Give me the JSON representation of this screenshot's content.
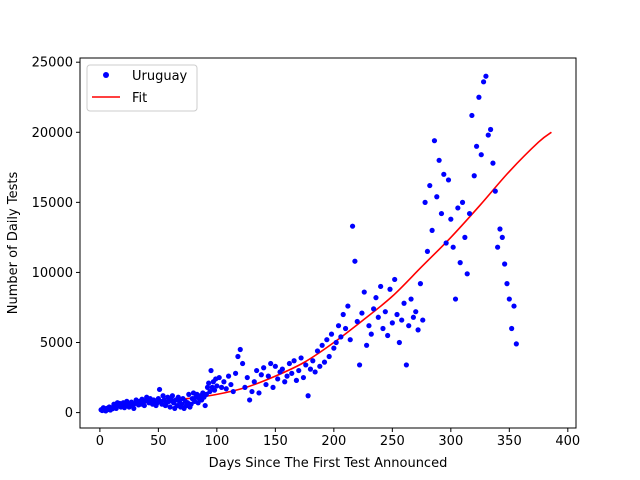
{
  "chart_data": {
    "type": "scatter",
    "title": "",
    "xlabel": "Days Since The First Test Announced",
    "ylabel": "Number of Daily Tests",
    "xlim": [
      -17,
      407
    ],
    "ylim": [
      -1100,
      25300
    ],
    "xticks": [
      0,
      50,
      100,
      150,
      200,
      250,
      300,
      350,
      400
    ],
    "xtick_labels": [
      "0",
      "50",
      "100",
      "150",
      "200",
      "250",
      "300",
      "350",
      "400"
    ],
    "yticks": [
      0,
      5000,
      10000,
      15000,
      20000,
      25000
    ],
    "ytick_labels": [
      "0",
      "5000",
      "10000",
      "15000",
      "20000",
      "25000"
    ],
    "grid": false,
    "legend": {
      "placement": "upper-left",
      "entries": [
        {
          "label": "Uruguay",
          "marker": "dot",
          "color": "#0000ff"
        },
        {
          "label": "Fit",
          "marker": "line",
          "color": "#ff0000"
        }
      ]
    },
    "series": [
      {
        "name": "Uruguay",
        "kind": "scatter",
        "color": "#0000ff",
        "points": [
          [
            1,
            200
          ],
          [
            2,
            150
          ],
          [
            3,
            350
          ],
          [
            4,
            250
          ],
          [
            5,
            120
          ],
          [
            6,
            300
          ],
          [
            7,
            220
          ],
          [
            8,
            400
          ],
          [
            9,
            180
          ],
          [
            10,
            350
          ],
          [
            11,
            280
          ],
          [
            12,
            600
          ],
          [
            13,
            450
          ],
          [
            14,
            300
          ],
          [
            15,
            700
          ],
          [
            16,
            500
          ],
          [
            17,
            650
          ],
          [
            18,
            400
          ],
          [
            19,
            550
          ],
          [
            20,
            700
          ],
          [
            21,
            350
          ],
          [
            22,
            500
          ],
          [
            23,
            800
          ],
          [
            24,
            600
          ],
          [
            25,
            400
          ],
          [
            26,
            550
          ],
          [
            27,
            750
          ],
          [
            28,
            500
          ],
          [
            29,
            300
          ],
          [
            30,
            650
          ],
          [
            31,
            900
          ],
          [
            32,
            700
          ],
          [
            33,
            550
          ],
          [
            34,
            800
          ],
          [
            35,
            600
          ],
          [
            36,
            950
          ],
          [
            37,
            700
          ],
          [
            38,
            500
          ],
          [
            39,
            850
          ],
          [
            40,
            1100
          ],
          [
            41,
            900
          ],
          [
            42,
            700
          ],
          [
            43,
            1000
          ],
          [
            44,
            800
          ],
          [
            45,
            600
          ],
          [
            46,
            900
          ],
          [
            47,
            750
          ],
          [
            48,
            500
          ],
          [
            49,
            700
          ],
          [
            50,
            1000
          ],
          [
            51,
            1650
          ],
          [
            52,
            800
          ],
          [
            53,
            600
          ],
          [
            54,
            1200
          ],
          [
            55,
            900
          ],
          [
            56,
            500
          ],
          [
            57,
            700
          ],
          [
            58,
            1100
          ],
          [
            59,
            800
          ],
          [
            60,
            400
          ],
          [
            61,
            950
          ],
          [
            62,
            1200
          ],
          [
            63,
            700
          ],
          [
            64,
            300
          ],
          [
            65,
            900
          ],
          [
            66,
            500
          ],
          [
            67,
            1100
          ],
          [
            68,
            800
          ],
          [
            69,
            400
          ],
          [
            70,
            600
          ],
          [
            71,
            1000
          ],
          [
            72,
            300
          ],
          [
            73,
            800
          ],
          [
            74,
            500
          ],
          [
            75,
            700
          ],
          [
            76,
            1300
          ],
          [
            77,
            400
          ],
          [
            78,
            600
          ],
          [
            79,
            1000
          ],
          [
            80,
            1400
          ],
          [
            81,
            800
          ],
          [
            82,
            1100
          ],
          [
            83,
            1300
          ],
          [
            84,
            700
          ],
          [
            85,
            1000
          ],
          [
            86,
            1200
          ],
          [
            87,
            900
          ],
          [
            88,
            1400
          ],
          [
            89,
            1100
          ],
          [
            90,
            500
          ],
          [
            91,
            1300
          ],
          [
            92,
            1800
          ],
          [
            93,
            2100
          ],
          [
            94,
            1500
          ],
          [
            95,
            3000
          ],
          [
            96,
            1800
          ],
          [
            97,
            2200
          ],
          [
            98,
            1600
          ],
          [
            99,
            2400
          ],
          [
            100,
            1900
          ],
          [
            102,
            2500
          ],
          [
            104,
            1800
          ],
          [
            106,
            2200
          ],
          [
            108,
            1700
          ],
          [
            110,
            2600
          ],
          [
            112,
            2000
          ],
          [
            114,
            1500
          ],
          [
            116,
            2800
          ],
          [
            118,
            4000
          ],
          [
            120,
            4500
          ],
          [
            122,
            3500
          ],
          [
            124,
            1800
          ],
          [
            126,
            2500
          ],
          [
            128,
            900
          ],
          [
            130,
            1500
          ],
          [
            132,
            2200
          ],
          [
            134,
            3000
          ],
          [
            136,
            1400
          ],
          [
            138,
            2700
          ],
          [
            140,
            3200
          ],
          [
            142,
            2000
          ],
          [
            144,
            2600
          ],
          [
            146,
            3500
          ],
          [
            148,
            1800
          ],
          [
            150,
            3300
          ],
          [
            152,
            2400
          ],
          [
            154,
            2900
          ],
          [
            156,
            3100
          ],
          [
            158,
            2200
          ],
          [
            160,
            2600
          ],
          [
            162,
            3500
          ],
          [
            164,
            2800
          ],
          [
            166,
            3700
          ],
          [
            168,
            2300
          ],
          [
            170,
            3000
          ],
          [
            172,
            3900
          ],
          [
            174,
            2500
          ],
          [
            176,
            3400
          ],
          [
            178,
            1200
          ],
          [
            180,
            3100
          ],
          [
            182,
            3700
          ],
          [
            184,
            2900
          ],
          [
            186,
            4400
          ],
          [
            188,
            3300
          ],
          [
            190,
            4800
          ],
          [
            192,
            3600
          ],
          [
            194,
            5200
          ],
          [
            196,
            4000
          ],
          [
            198,
            5600
          ],
          [
            200,
            4600
          ],
          [
            202,
            5000
          ],
          [
            204,
            6200
          ],
          [
            206,
            5400
          ],
          [
            208,
            7000
          ],
          [
            210,
            6000
          ],
          [
            212,
            7600
          ],
          [
            214,
            5200
          ],
          [
            216,
            13300
          ],
          [
            218,
            10800
          ],
          [
            220,
            6500
          ],
          [
            222,
            3400
          ],
          [
            224,
            7100
          ],
          [
            226,
            8600
          ],
          [
            228,
            4800
          ],
          [
            230,
            6200
          ],
          [
            232,
            5600
          ],
          [
            234,
            7400
          ],
          [
            236,
            8200
          ],
          [
            238,
            6800
          ],
          [
            240,
            9000
          ],
          [
            242,
            6000
          ],
          [
            244,
            7200
          ],
          [
            246,
            5500
          ],
          [
            248,
            8800
          ],
          [
            250,
            6400
          ],
          [
            252,
            9500
          ],
          [
            254,
            7000
          ],
          [
            256,
            5000
          ],
          [
            258,
            6600
          ],
          [
            260,
            7800
          ],
          [
            262,
            3400
          ],
          [
            264,
            6200
          ],
          [
            266,
            8100
          ],
          [
            268,
            6800
          ],
          [
            270,
            7200
          ],
          [
            272,
            5900
          ],
          [
            274,
            9200
          ],
          [
            276,
            6600
          ],
          [
            278,
            15000
          ],
          [
            280,
            11500
          ],
          [
            282,
            16200
          ],
          [
            284,
            13000
          ],
          [
            286,
            19400
          ],
          [
            288,
            15400
          ],
          [
            290,
            18000
          ],
          [
            292,
            14200
          ],
          [
            294,
            17000
          ],
          [
            296,
            12100
          ],
          [
            298,
            16600
          ],
          [
            300,
            13800
          ],
          [
            302,
            11800
          ],
          [
            304,
            8100
          ],
          [
            306,
            14600
          ],
          [
            308,
            10700
          ],
          [
            310,
            15000
          ],
          [
            312,
            12500
          ],
          [
            314,
            9900
          ],
          [
            316,
            14200
          ],
          [
            318,
            21200
          ],
          [
            320,
            16900
          ],
          [
            322,
            19000
          ],
          [
            324,
            22500
          ],
          [
            326,
            18400
          ],
          [
            328,
            23600
          ],
          [
            330,
            24000
          ],
          [
            332,
            19800
          ],
          [
            334,
            20200
          ],
          [
            336,
            17800
          ],
          [
            338,
            15800
          ],
          [
            340,
            11800
          ],
          [
            342,
            13100
          ],
          [
            344,
            12500
          ],
          [
            346,
            10600
          ],
          [
            348,
            9200
          ],
          [
            350,
            8100
          ],
          [
            352,
            6000
          ],
          [
            354,
            7600
          ],
          [
            356,
            4900
          ]
        ]
      },
      {
        "name": "Fit",
        "kind": "line",
        "color": "#ff0000",
        "x": [
          0,
          25,
          50,
          75,
          100,
          125,
          150,
          175,
          200,
          225,
          250,
          275,
          300,
          325,
          350,
          375,
          386
        ],
        "y": [
          300,
          600,
          800,
          1000,
          1300,
          1800,
          2600,
          3600,
          5000,
          6600,
          8300,
          10400,
          12500,
          14800,
          17200,
          19300,
          20000
        ]
      }
    ]
  }
}
